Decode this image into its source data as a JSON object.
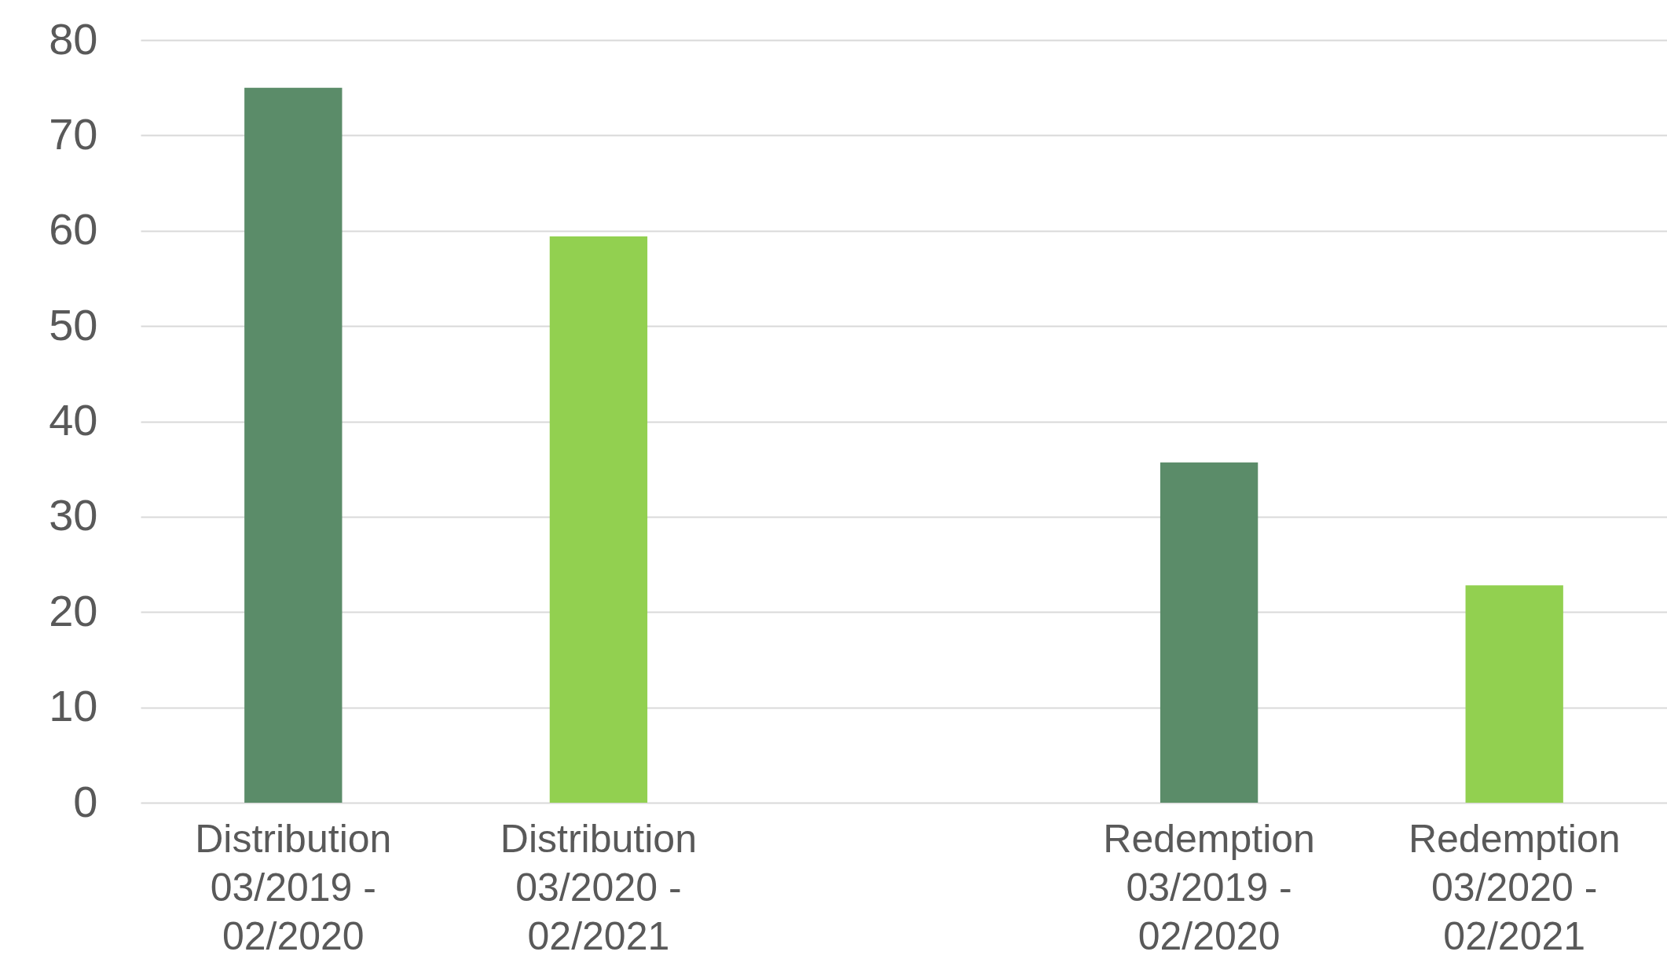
{
  "chart_data": {
    "type": "bar",
    "categories": [
      "Distribution 03/2019 - 02/2020",
      "Distribution 03/2020 - 02/2021",
      null,
      "Redemption 03/2019 - 02/2020",
      "Redemption 03/2020 - 02/2021"
    ],
    "values": [
      75,
      59.4,
      null,
      35.7,
      22.8
    ],
    "colors": [
      "#5b8c69",
      "#92d050",
      null,
      "#5b8c69",
      "#92d050"
    ],
    "ylim": [
      0,
      80
    ],
    "yticks": [
      0,
      10,
      20,
      30,
      40,
      50,
      60,
      70,
      80
    ],
    "grid": "y"
  }
}
